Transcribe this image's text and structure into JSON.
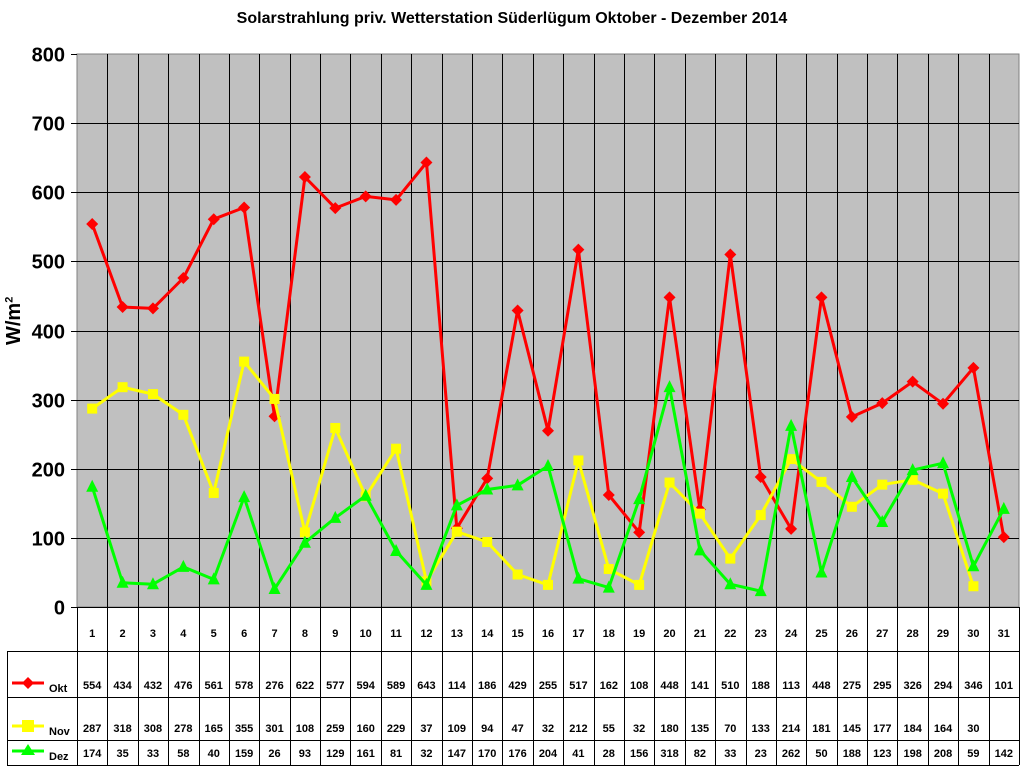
{
  "chart_data": {
    "type": "line",
    "title": "Solarstrahlung priv. Wetterstation Süderlügum Oktober - Dezember 2014",
    "xlabel": "",
    "ylabel": "W/m²",
    "ylim": [
      0,
      800
    ],
    "yticks": [
      0,
      100,
      200,
      300,
      400,
      500,
      600,
      700,
      800
    ],
    "grid": true,
    "legend_position": "data-table-left",
    "background": "#C0C0C0",
    "categories": [
      "1",
      "2",
      "3",
      "4",
      "5",
      "6",
      "7",
      "8",
      "9",
      "10",
      "11",
      "12",
      "13",
      "14",
      "15",
      "16",
      "17",
      "18",
      "19",
      "20",
      "21",
      "22",
      "23",
      "24",
      "25",
      "26",
      "27",
      "28",
      "29",
      "30",
      "31"
    ],
    "series": [
      {
        "name": "Okt",
        "color": "#FF0000",
        "marker": "diamond",
        "values": [
          554,
          434,
          432,
          476,
          561,
          578,
          276,
          622,
          577,
          594,
          589,
          643,
          114,
          186,
          429,
          255,
          517,
          162,
          108,
          448,
          141,
          510,
          188,
          113,
          448,
          275,
          295,
          326,
          294,
          346,
          101
        ]
      },
      {
        "name": "Nov",
        "color": "#FFFF00",
        "marker": "square",
        "values": [
          287,
          318,
          308,
          278,
          165,
          355,
          301,
          108,
          259,
          160,
          229,
          37,
          109,
          94,
          47,
          32,
          212,
          55,
          32,
          180,
          135,
          70,
          133,
          214,
          181,
          145,
          177,
          184,
          164,
          30,
          null
        ]
      },
      {
        "name": "Dez",
        "color": "#00FF00",
        "marker": "triangle",
        "values": [
          174,
          35,
          33,
          58,
          40,
          159,
          26,
          93,
          129,
          161,
          81,
          32,
          147,
          170,
          176,
          204,
          41,
          28,
          156,
          318,
          82,
          33,
          23,
          262,
          50,
          188,
          123,
          198,
          208,
          59,
          142
        ]
      }
    ]
  }
}
